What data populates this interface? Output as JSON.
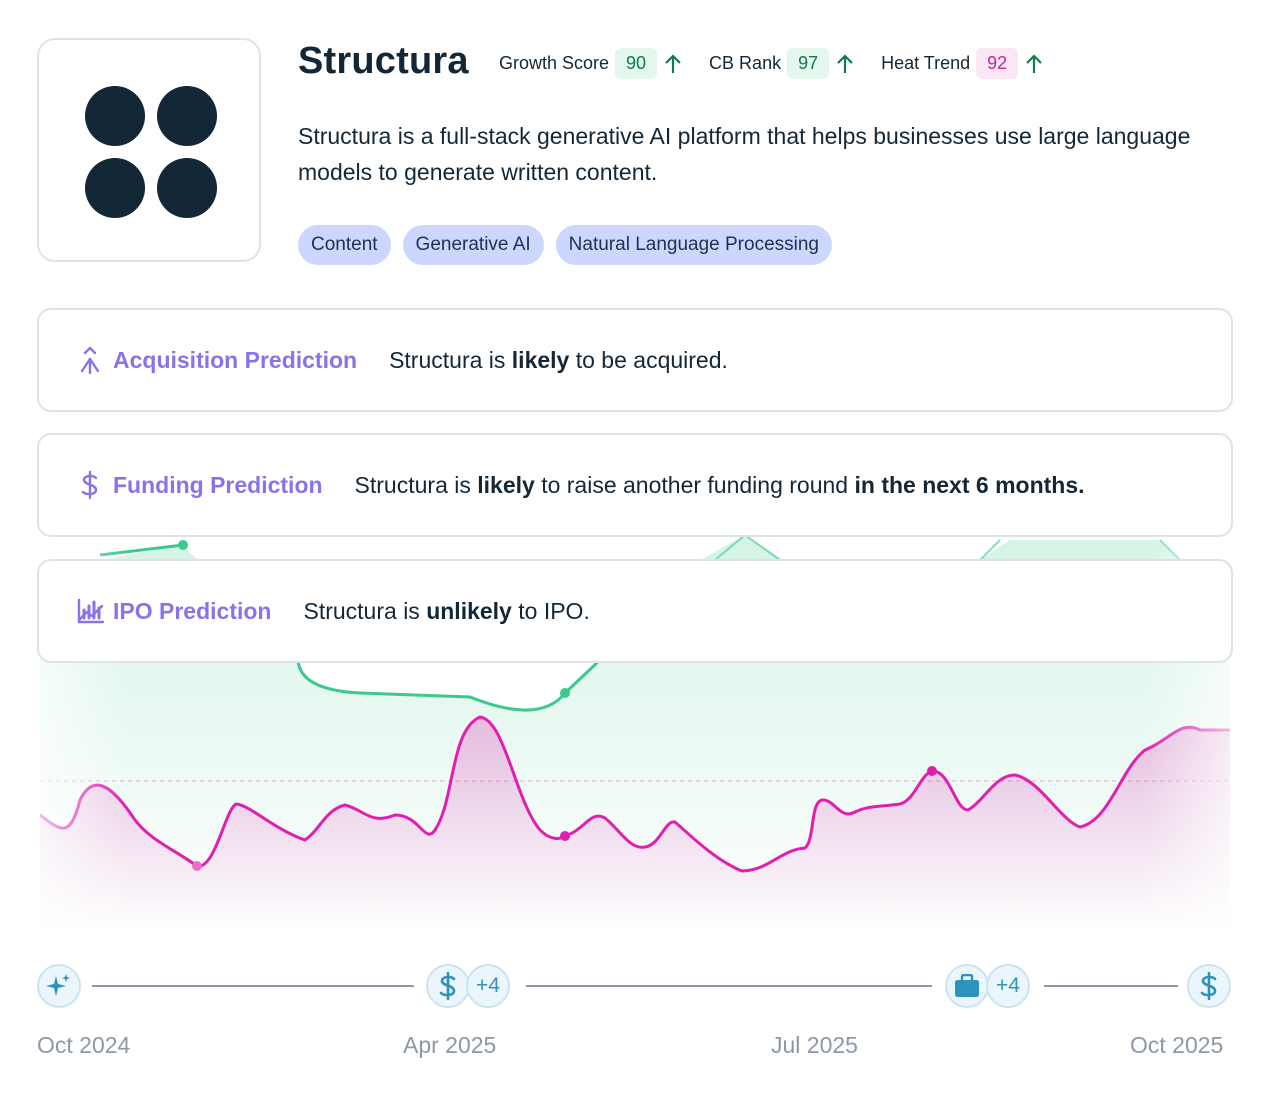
{
  "company": {
    "name": "Structura",
    "logo_icon": "four-dots-logo-icon",
    "logo_color": "#132836",
    "description": "Structura is a full-stack generative AI platform that helps businesses use large language models to generate written content."
  },
  "metrics": [
    {
      "label": "Growth Score",
      "value": "90",
      "trend_icon": "arrow-up-icon",
      "color": "#0f7a4a"
    },
    {
      "label": "CB Rank",
      "value": "97",
      "trend_icon": "arrow-up-icon",
      "color": "#0f7a4a"
    },
    {
      "label": "Heat Trend",
      "value": "92",
      "trend_icon": "arrow-up-icon",
      "color": "#c0269c"
    }
  ],
  "tags": [
    "Content",
    "Generative AI",
    "Natural Language Processing"
  ],
  "predictions": [
    {
      "icon": "merge-arrows-icon",
      "title": "Acquisition Prediction",
      "text": {
        "pre": "Structura is ",
        "b1": "likely",
        "mid": " to be acquired.",
        "b2": "",
        "post": ""
      }
    },
    {
      "icon": "dollar-icon",
      "title": "Funding Prediction",
      "text": {
        "pre": "Structura is ",
        "b1": "likely",
        "mid": " to raise another funding round ",
        "b2": "in the next 6 months.",
        "post": ""
      }
    },
    {
      "icon": "chart-trend-icon",
      "title": "IPO Prediction",
      "text": {
        "pre": "Structura is ",
        "b1": "unlikely",
        "mid": " to IPO.",
        "b2": "",
        "post": ""
      }
    }
  ],
  "timeline": {
    "events": [
      {
        "icon": "sparkle-icon",
        "count": ""
      },
      {
        "icon": "dollar-icon",
        "count": "+4"
      },
      {
        "icon": "briefcase-icon",
        "count": "+4"
      },
      {
        "icon": "dollar-icon",
        "count": ""
      }
    ],
    "dates": [
      "Oct 2024",
      "Apr 2025",
      "Jul 2025",
      "Oct 2025"
    ]
  },
  "colors": {
    "accent_purple": "#8a73ea",
    "growth_line": "#3cc98c",
    "heat_line": "#e01fae",
    "tag_bg": "#cdd6ff",
    "event_icon": "#2d93b8"
  }
}
